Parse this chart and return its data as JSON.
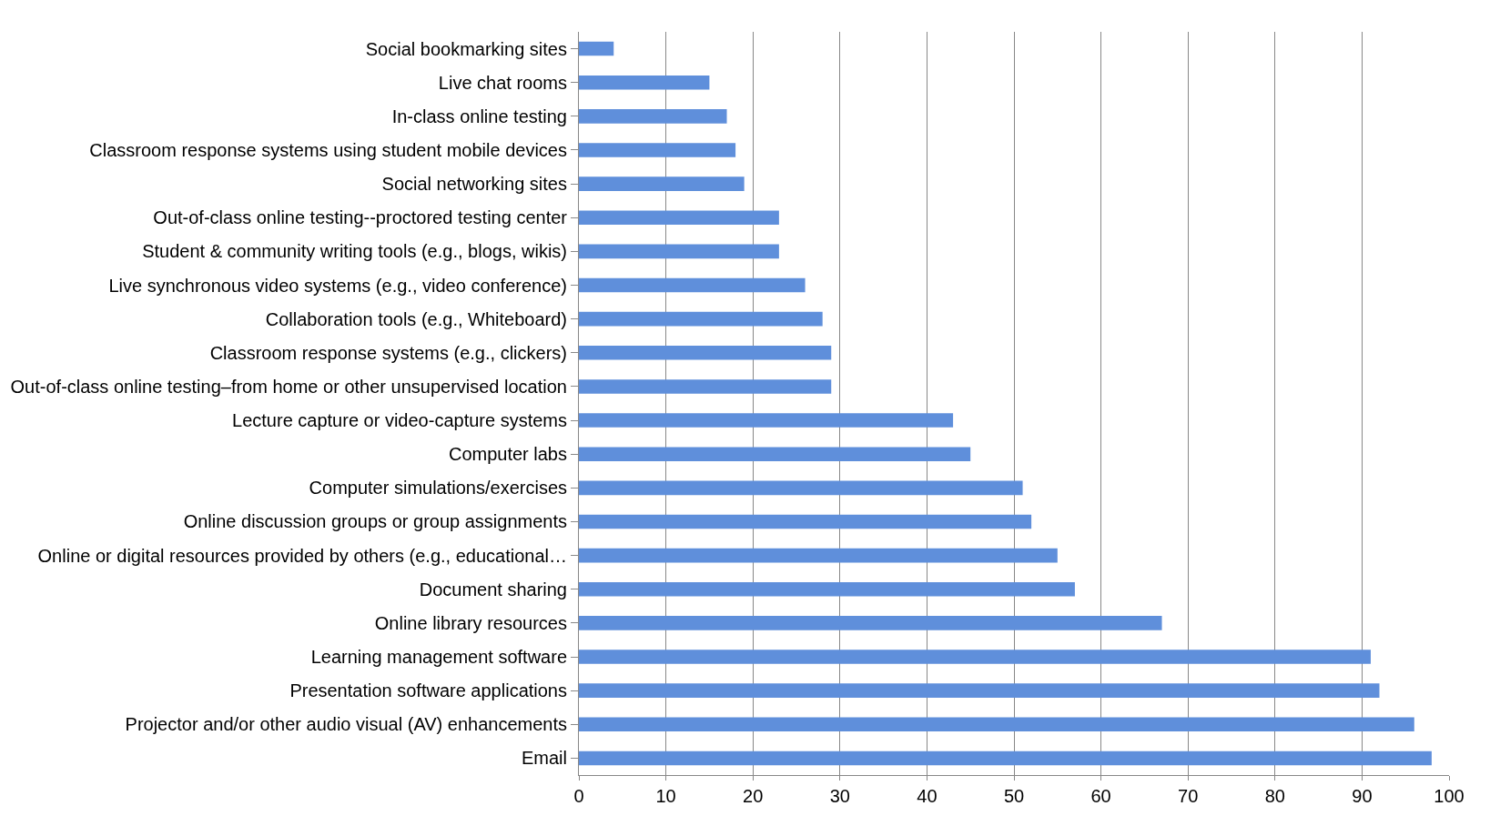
{
  "chart_data": {
    "type": "bar",
    "orientation": "horizontal",
    "categories": [
      "Social bookmarking sites",
      "Live chat rooms",
      "In-class online testing",
      "Classroom response systems using student mobile devices",
      "Social networking sites",
      "Out-of-class online testing--proctored testing center",
      "Student & community writing tools (e.g., blogs, wikis)",
      "Live synchronous video systems (e.g., video conference)",
      "Collaboration tools (e.g., Whiteboard)",
      "Classroom response systems (e.g., clickers)",
      "Out-of-class online testing–from home or other unsupervised location",
      "Lecture capture or video-capture systems",
      "Computer labs",
      "Computer simulations/exercises",
      "Online discussion groups or group assignments",
      "Online or digital resources provided by others (e.g., educational…",
      "Document sharing",
      "Online library resources",
      "Learning management software",
      "Presentation software applications",
      "Projector and/or other audio visual (AV) enhancements",
      "Email"
    ],
    "values": [
      4,
      15,
      17,
      18,
      19,
      23,
      23,
      26,
      28,
      29,
      29,
      43,
      45,
      51,
      52,
      55,
      57,
      67,
      91,
      92,
      96,
      98
    ],
    "color": "#5f8fdb",
    "xlim": [
      0,
      100
    ],
    "xticks": [
      0,
      10,
      20,
      30,
      40,
      50,
      60,
      70,
      80,
      90,
      100
    ],
    "grid": "x"
  }
}
